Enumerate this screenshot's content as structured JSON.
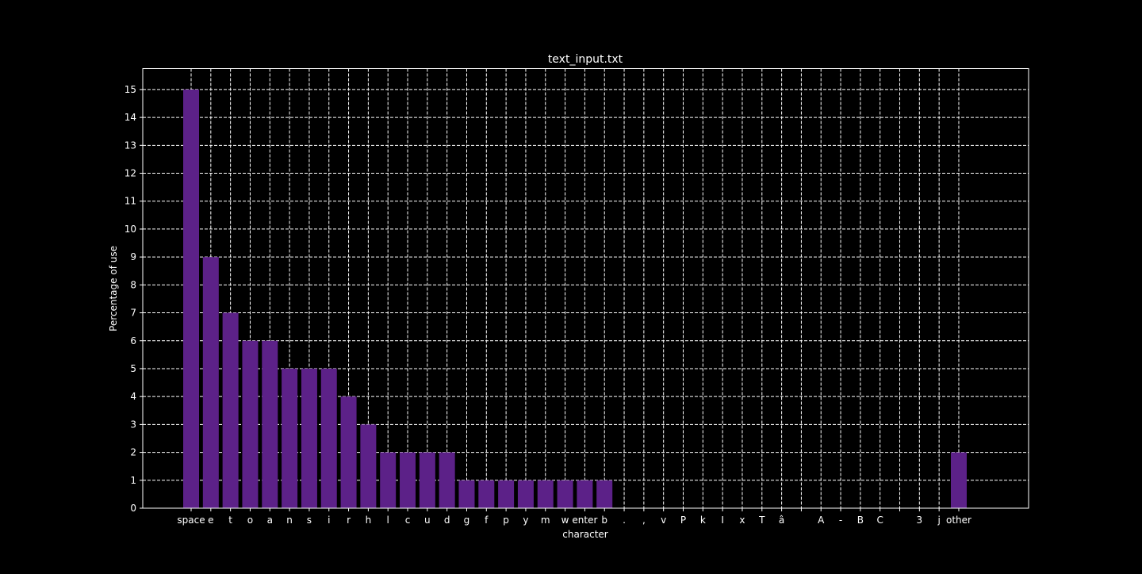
{
  "chart_data": {
    "type": "bar",
    "title": "text_input.txt",
    "xlabel": "character",
    "ylabel": "Percentage of use",
    "ylim": [
      0,
      15.75
    ],
    "yticks": [
      0,
      1,
      2,
      3,
      4,
      5,
      6,
      7,
      8,
      9,
      10,
      11,
      12,
      13,
      14,
      15
    ],
    "grid": true,
    "categories": [
      "space",
      "e",
      "t",
      "o",
      "a",
      "n",
      "s",
      "i",
      "r",
      "h",
      "l",
      "c",
      "u",
      "d",
      "g",
      "f",
      "p",
      "y",
      "m",
      "w",
      "enter",
      "b",
      ".",
      ",",
      "v",
      "P",
      "k",
      "I",
      "x",
      "T",
      "â",
      "",
      "A",
      "-",
      "B",
      "C",
      "",
      "3",
      "j",
      "other"
    ],
    "values": [
      15,
      9,
      7,
      6,
      6,
      5,
      5,
      5,
      4,
      3,
      2,
      2,
      2,
      2,
      1,
      1,
      1,
      1,
      1,
      1,
      1,
      1,
      0,
      0,
      0,
      0,
      0,
      0,
      0,
      0,
      0,
      0,
      0,
      0,
      0,
      0,
      0,
      0,
      0,
      2
    ],
    "colors": {
      "background": "#000000",
      "bar": "#5c2188",
      "axis": "#ffffff",
      "grid": "#ffffff",
      "text": "#ffffff"
    }
  }
}
